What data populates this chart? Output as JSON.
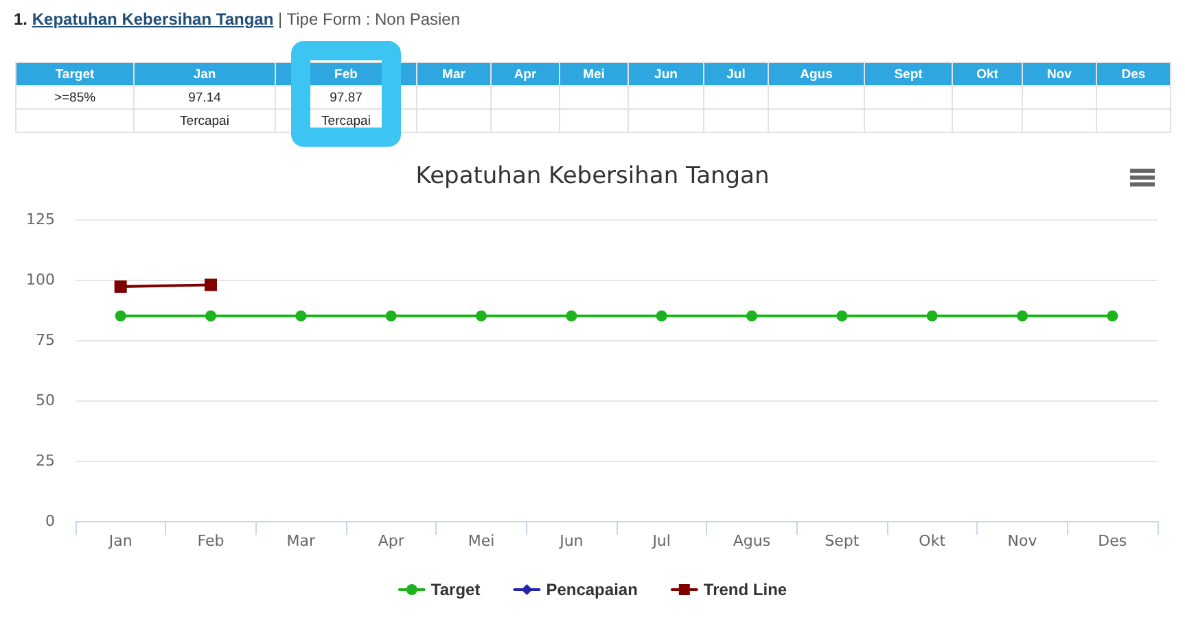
{
  "chart_data": {
    "type": "line",
    "title": "Kepatuhan Kebersihan Tangan",
    "categories": [
      "Jan",
      "Feb",
      "Mar",
      "Apr",
      "Mei",
      "Jun",
      "Jul",
      "Agus",
      "Sept",
      "Okt",
      "Nov",
      "Des"
    ],
    "series": [
      {
        "name": "Target",
        "color": "#1db31d",
        "marker": "circle",
        "values": [
          85,
          85,
          85,
          85,
          85,
          85,
          85,
          85,
          85,
          85,
          85,
          85
        ]
      },
      {
        "name": "Pencapaian",
        "color": "#2424a8",
        "marker": "diamond",
        "values": [
          null,
          null,
          null,
          null,
          null,
          null,
          null,
          null,
          null,
          null,
          null,
          null
        ]
      },
      {
        "name": "Trend Line",
        "color": "#800000",
        "marker": "square",
        "values": [
          97.14,
          97.87,
          null,
          null,
          null,
          null,
          null,
          null,
          null,
          null,
          null,
          null
        ]
      }
    ],
    "ylim": [
      0,
      125
    ],
    "yticks": [
      0,
      25,
      50,
      75,
      100,
      125
    ],
    "grid": "y",
    "legend": "bottom",
    "annotations": [
      "1.",
      "Kepatuhan Kebersihan Tangan",
      "| Tipe Form : Non Pasien",
      "Target",
      ">=85%",
      "97.14",
      "97.87",
      "Tercapai",
      "Tercapai"
    ]
  }
}
